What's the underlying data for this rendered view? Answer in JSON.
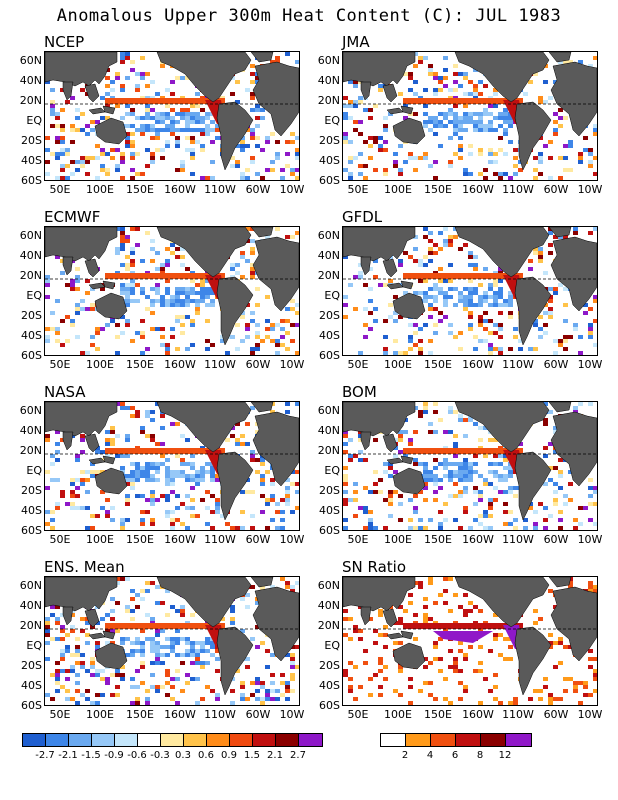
{
  "title": "Anomalous Upper 300m Heat Content (C): JUL 1983",
  "lat_labels": [
    "60N",
    "40N",
    "20N",
    "EQ",
    "20S",
    "40S",
    "60S"
  ],
  "lon_labels": [
    "50E",
    "100E",
    "150E",
    "160W",
    "110W",
    "60W",
    "10W"
  ],
  "panels": [
    {
      "name": "NCEP"
    },
    {
      "name": "JMA"
    },
    {
      "name": "ECMWF"
    },
    {
      "name": "GFDL"
    },
    {
      "name": "NASA"
    },
    {
      "name": "BOM"
    },
    {
      "name": "ENS. Mean"
    },
    {
      "name": "SN Ratio"
    }
  ],
  "colorbar_anomaly": {
    "colors": [
      "#1f5fd0",
      "#3e86e8",
      "#6aa9f0",
      "#96c8f7",
      "#c4e6fb",
      "#ffffff",
      "#ffe9a0",
      "#ffc34a",
      "#ff8c1a",
      "#f04a10",
      "#c01010",
      "#8a0000",
      "#8e18c8"
    ],
    "labels": [
      "-2.7",
      "-2.1",
      "-1.5",
      "-0.9",
      "-0.6",
      "-0.3",
      "0.3",
      "0.6",
      "0.9",
      "1.5",
      "2.1",
      "2.7"
    ]
  },
  "colorbar_snr": {
    "colors": [
      "#ffffff",
      "#ff9a1a",
      "#f05010",
      "#c01010",
      "#8a0000",
      "#9018c8"
    ],
    "labels": [
      "2",
      "4",
      "6",
      "8",
      "12"
    ]
  }
}
